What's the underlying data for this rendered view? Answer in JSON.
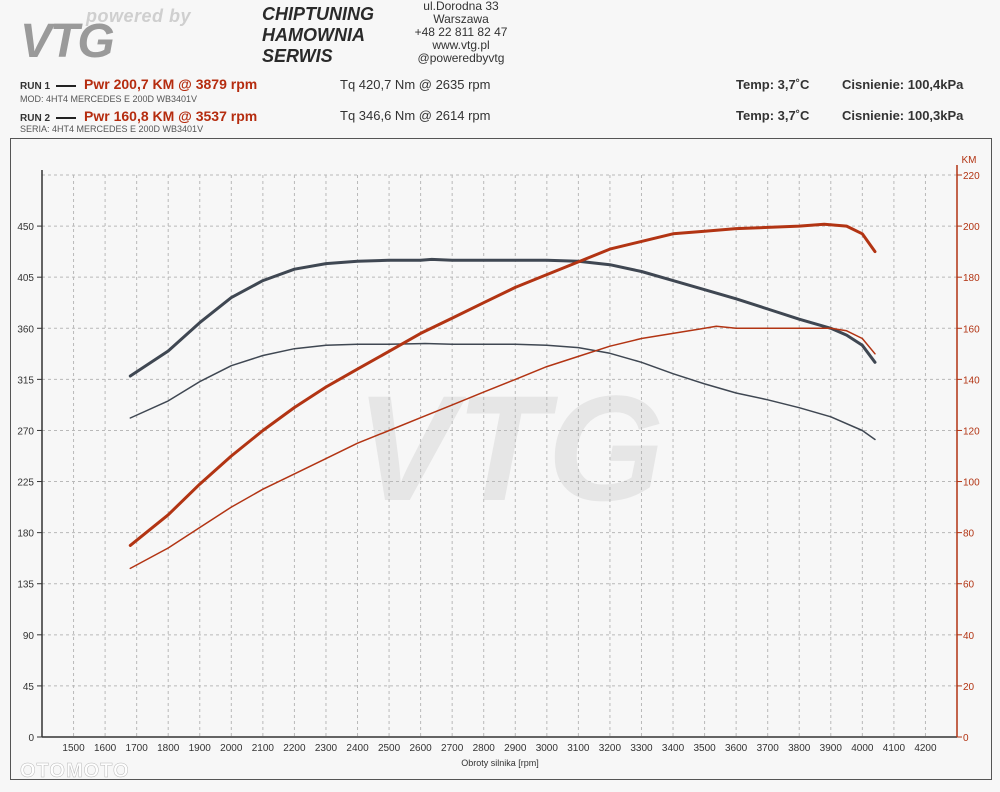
{
  "brand": {
    "tagline": "powered by",
    "mark": "VTG"
  },
  "service": {
    "line1": "CHIPTUNING",
    "line2": "HAMOWNIA",
    "line3": "SERWIS"
  },
  "address": {
    "street": "ul.Dorodna 33",
    "city": "Warszawa",
    "phone": "+48 22 811 82 47",
    "web": "www.vtg.pl",
    "social": "@poweredbyvtg"
  },
  "run1": {
    "label": "RUN 1",
    "pwr": "Pwr  200,7 KM @ 3879 rpm",
    "tq": "Tq 420,7 Nm @ 2635 rpm",
    "info": "MOD: 4HT4 MERCEDES E 200D WB3401V",
    "temp": "Temp: 3,7˚C",
    "press": "Cisnienie: 100,4kPa"
  },
  "run2": {
    "label": "RUN 2",
    "pwr": "Pwr  160,8 KM @ 3537 rpm",
    "tq": "Tq 346,6 Nm @ 2614 rpm",
    "info": "SERIA: 4HT4 MERCEDES E 200D WB3401V",
    "temp": "Temp: 3,7˚C",
    "press": "Cisnienie: 100,3kPa"
  },
  "watermark": "OTOMOTO",
  "colors": {
    "torque": "#3f4752",
    "power": "#b23413",
    "grid": "#b9b9b9"
  },
  "chart_data": {
    "type": "line",
    "xlabel": "Obroty silnika [rpm]",
    "ylabel_right": "KM",
    "xlim": [
      1400,
      4300
    ],
    "ylim_left": [
      0,
      495
    ],
    "ylim_right": [
      0,
      220
    ],
    "x_ticks": [
      1500,
      1600,
      1700,
      1800,
      1900,
      2000,
      2100,
      2200,
      2300,
      2400,
      2500,
      2600,
      2700,
      2800,
      2900,
      3000,
      3100,
      3200,
      3300,
      3400,
      3500,
      3600,
      3700,
      3800,
      3900,
      4000,
      4100,
      4200
    ],
    "y_left_ticks": [
      0,
      45,
      90,
      135,
      180,
      225,
      270,
      315,
      360,
      405,
      450
    ],
    "y_right_ticks": [
      0,
      20,
      40,
      60,
      80,
      100,
      120,
      140,
      160,
      180,
      200,
      220
    ],
    "grid": true,
    "series": [
      {
        "name": "RUN 1",
        "quantity": "Tq",
        "axis": "left",
        "style": "thick",
        "x": [
          1680,
          1800,
          1900,
          2000,
          2100,
          2200,
          2300,
          2400,
          2500,
          2600,
          2635,
          2700,
          2800,
          2900,
          3000,
          3100,
          3200,
          3300,
          3400,
          3500,
          3600,
          3700,
          3800,
          3900,
          3950,
          4000,
          4040
        ],
        "y": [
          318,
          340,
          365,
          387,
          402,
          412,
          417,
          419,
          420,
          420,
          420.7,
          420,
          420,
          420,
          420,
          419,
          416,
          410,
          402,
          394,
          386,
          377,
          368,
          360,
          354,
          345,
          330
        ]
      },
      {
        "name": "RUN 2",
        "quantity": "Tq",
        "axis": "left",
        "style": "thin",
        "x": [
          1680,
          1800,
          1900,
          2000,
          2100,
          2200,
          2300,
          2400,
          2500,
          2600,
          2614,
          2700,
          2800,
          2900,
          3000,
          3100,
          3200,
          3300,
          3400,
          3500,
          3600,
          3700,
          3800,
          3900,
          4000,
          4040
        ],
        "y": [
          281,
          296,
          313,
          327,
          336,
          342,
          345,
          346,
          346,
          346.5,
          346.6,
          346,
          346,
          346,
          345,
          343,
          338,
          330,
          320,
          311,
          303,
          297,
          290,
          282,
          270,
          262
        ]
      },
      {
        "name": "RUN 1",
        "quantity": "Pwr",
        "axis": "right",
        "style": "thick",
        "x": [
          1680,
          1800,
          1900,
          2000,
          2100,
          2200,
          2300,
          2400,
          2500,
          2600,
          2700,
          2800,
          2900,
          3000,
          3100,
          3200,
          3300,
          3400,
          3500,
          3600,
          3700,
          3800,
          3879,
          3950,
          4000,
          4040
        ],
        "y": [
          75,
          87,
          99,
          110,
          120,
          129,
          137,
          144,
          151,
          158,
          164,
          170,
          176,
          181,
          186,
          191,
          194,
          197,
          198,
          199,
          199.5,
          200,
          200.7,
          200,
          197,
          190
        ]
      },
      {
        "name": "RUN 2",
        "quantity": "Pwr",
        "axis": "right",
        "style": "thin",
        "x": [
          1680,
          1800,
          1900,
          2000,
          2100,
          2200,
          2300,
          2400,
          2500,
          2600,
          2700,
          2800,
          2900,
          3000,
          3100,
          3200,
          3300,
          3400,
          3500,
          3537,
          3600,
          3700,
          3800,
          3900,
          3950,
          4000,
          4040
        ],
        "y": [
          66,
          74,
          82,
          90,
          97,
          103,
          109,
          115,
          120,
          125,
          130,
          135,
          140,
          145,
          149,
          153,
          156,
          158,
          160,
          160.8,
          160,
          160,
          160,
          160,
          159,
          156,
          150
        ]
      }
    ]
  }
}
